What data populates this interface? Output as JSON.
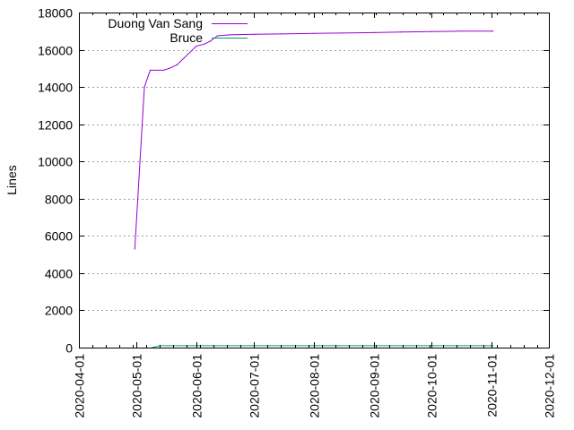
{
  "chart_data": {
    "type": "line",
    "title": "",
    "xlabel": "",
    "ylabel": "Lines",
    "x_scale": "time",
    "xlim": [
      "2020-04-01",
      "2020-12-01"
    ],
    "ylim": [
      0,
      18000
    ],
    "x_ticks": [
      "2020-04-01",
      "2020-05-01",
      "2020-06-01",
      "2020-07-01",
      "2020-08-01",
      "2020-09-01",
      "2020-10-01",
      "2020-11-01",
      "2020-12-01"
    ],
    "y_ticks": [
      0,
      2000,
      4000,
      6000,
      8000,
      10000,
      12000,
      14000,
      16000,
      18000
    ],
    "y_grid": true,
    "x_grid": false,
    "legend_position": "top-left",
    "series": [
      {
        "name": "Duong Van Sang",
        "color": "#9400d3",
        "points": [
          [
            "2020-04-30",
            5300
          ],
          [
            "2020-05-05",
            14000
          ],
          [
            "2020-05-08",
            14900
          ],
          [
            "2020-05-15",
            14900
          ],
          [
            "2020-05-18",
            15000
          ],
          [
            "2020-05-22",
            15200
          ],
          [
            "2020-06-01",
            16200
          ],
          [
            "2020-06-05",
            16300
          ],
          [
            "2020-06-08",
            16450
          ],
          [
            "2020-06-12",
            16750
          ],
          [
            "2020-06-18",
            16800
          ],
          [
            "2020-07-01",
            16830
          ],
          [
            "2020-07-15",
            16850
          ],
          [
            "2020-08-01",
            16880
          ],
          [
            "2020-08-15",
            16900
          ],
          [
            "2020-09-01",
            16920
          ],
          [
            "2020-09-15",
            16950
          ],
          [
            "2020-10-01",
            16980
          ],
          [
            "2020-10-15",
            17000
          ],
          [
            "2020-11-01",
            17000
          ],
          [
            "2020-11-02",
            17000
          ]
        ]
      },
      {
        "name": "Bruce",
        "color": "#009e73",
        "points": [
          [
            "2020-05-09",
            0
          ],
          [
            "2020-05-11",
            50
          ],
          [
            "2020-05-13",
            100
          ],
          [
            "2020-05-20",
            100
          ],
          [
            "2020-06-01",
            100
          ],
          [
            "2020-07-01",
            100
          ],
          [
            "2020-08-01",
            100
          ],
          [
            "2020-09-01",
            100
          ],
          [
            "2020-10-01",
            100
          ],
          [
            "2020-11-01",
            100
          ],
          [
            "2020-11-02",
            100
          ]
        ]
      }
    ]
  }
}
